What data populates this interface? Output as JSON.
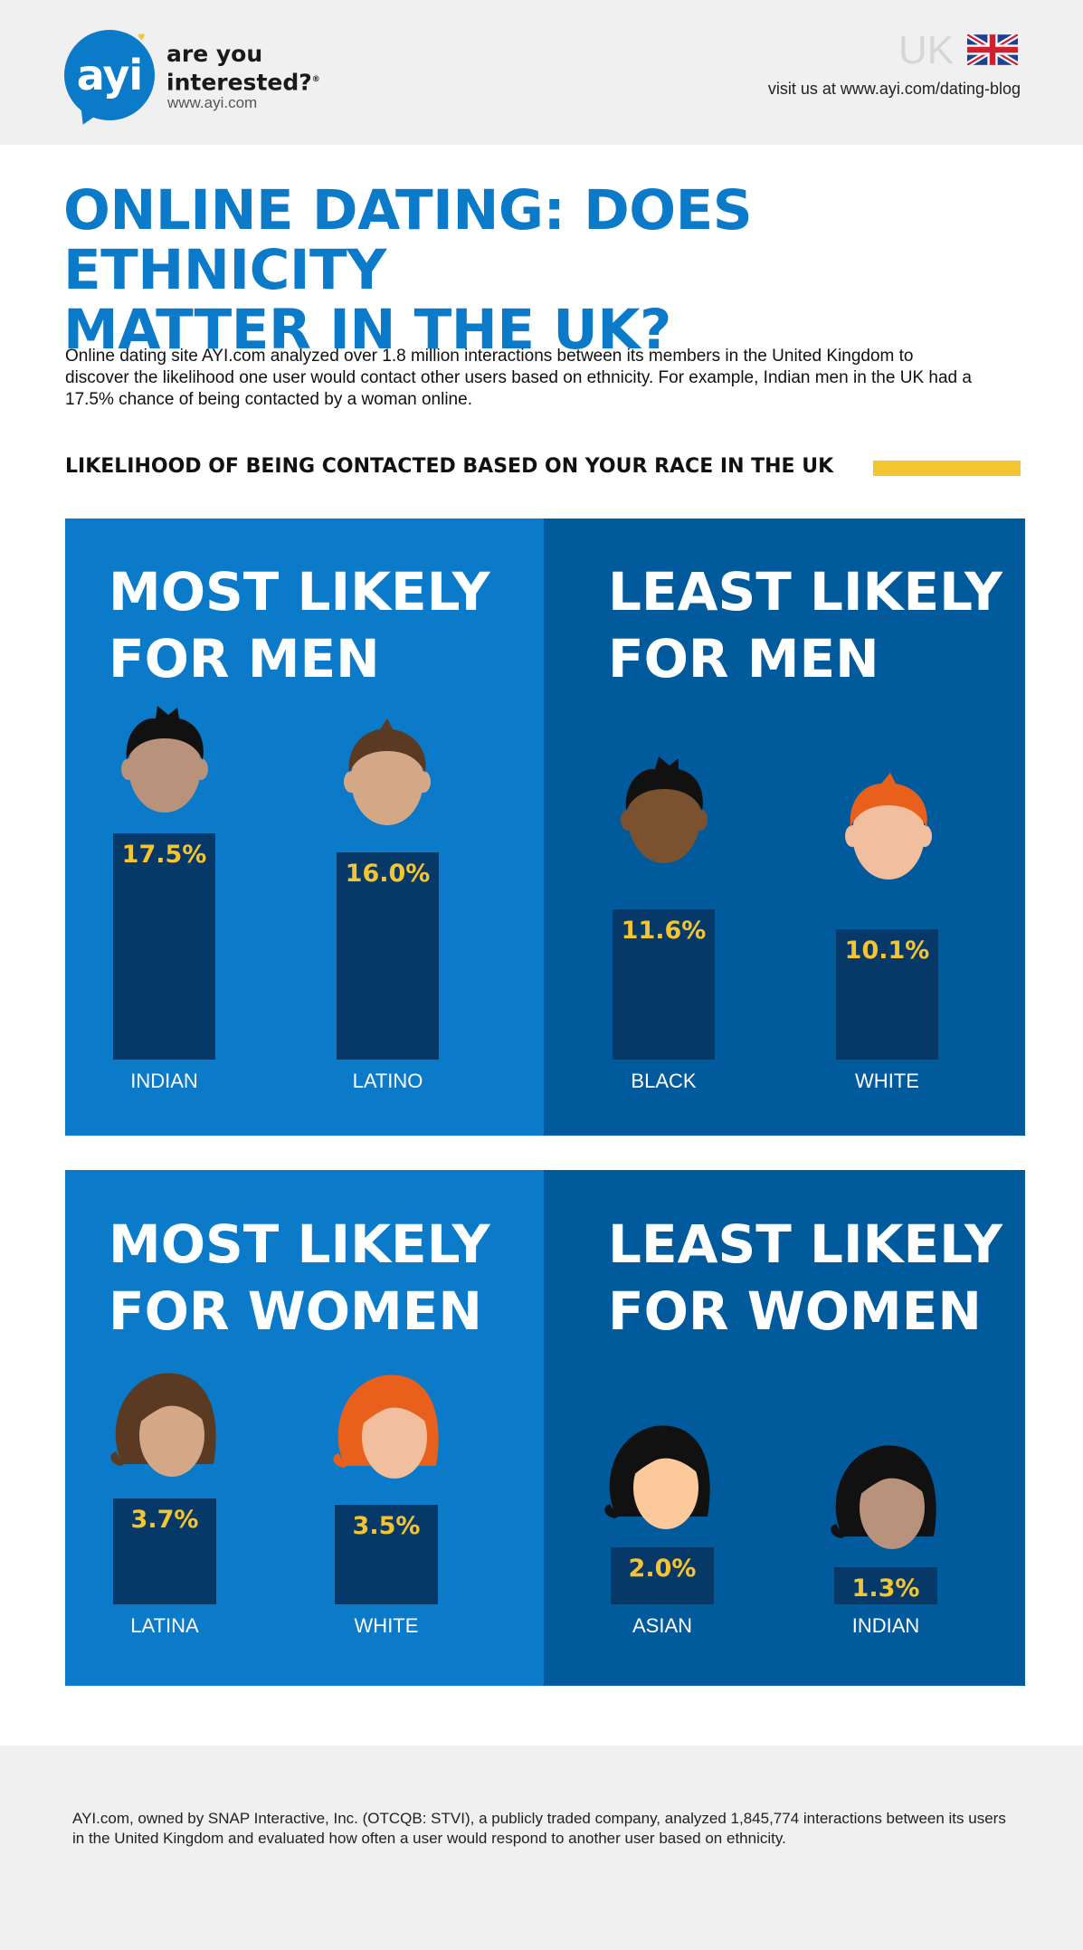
{
  "header": {
    "logo_text": "ayi",
    "tagline_line1": "are you",
    "tagline_line2": "interested?",
    "logo_url": "www.ayi.com",
    "country": "UK",
    "visit_text": "visit us at www.ayi.com/dating-blog"
  },
  "title_line1": "ONLINE DATING: DOES ETHNICITY",
  "title_line2": "MATTER IN THE UK?",
  "intro": "Online dating site AYI.com analyzed over 1.8 million interactions between its members in the United Kingdom to discover the likelihood one user would contact other users based on ethnicity. For example, Indian men in the UK had a 17.5% chance of being contacted by a woman online.",
  "subhead": "LIKELIHOOD OF BEING CONTACTED BASED ON YOUR RACE IN THE UK",
  "colors": {
    "accent": "#0a7ac9",
    "dark_panel": "#005a9c",
    "bar": "#073968",
    "yellow": "#f4c531"
  },
  "chart_data": [
    {
      "type": "bar",
      "title_line1": "MOST LIKELY",
      "title_line2": "FOR MEN",
      "categories": [
        "INDIAN",
        "LATINO"
      ],
      "values": [
        17.5,
        16.0
      ],
      "value_labels": [
        "17.5%",
        "16.0%"
      ]
    },
    {
      "type": "bar",
      "title_line1": "LEAST LIKELY",
      "title_line2": "FOR MEN",
      "categories": [
        "BLACK",
        "WHITE"
      ],
      "values": [
        11.6,
        10.1
      ],
      "value_labels": [
        "11.6%",
        "10.1%"
      ]
    },
    {
      "type": "bar",
      "title_line1": "MOST LIKELY",
      "title_line2": "FOR WOMEN",
      "categories": [
        "LATINA",
        "WHITE"
      ],
      "values": [
        3.7,
        3.5
      ],
      "value_labels": [
        "3.7%",
        "3.5%"
      ]
    },
    {
      "type": "bar",
      "title_line1": "LEAST LIKELY",
      "title_line2": "FOR WOMEN",
      "categories": [
        "ASIAN",
        "INDIAN"
      ],
      "values": [
        2.0,
        1.3
      ],
      "value_labels": [
        "2.0%",
        "1.3%"
      ]
    }
  ],
  "footer": "AYI.com, owned by SNAP Interactive, Inc. (OTCQB: STVI), a publicly traded company, analyzed 1,845,774 interactions between its users in the United Kingdom and evaluated how often a user would respond to another user based on ethnicity."
}
